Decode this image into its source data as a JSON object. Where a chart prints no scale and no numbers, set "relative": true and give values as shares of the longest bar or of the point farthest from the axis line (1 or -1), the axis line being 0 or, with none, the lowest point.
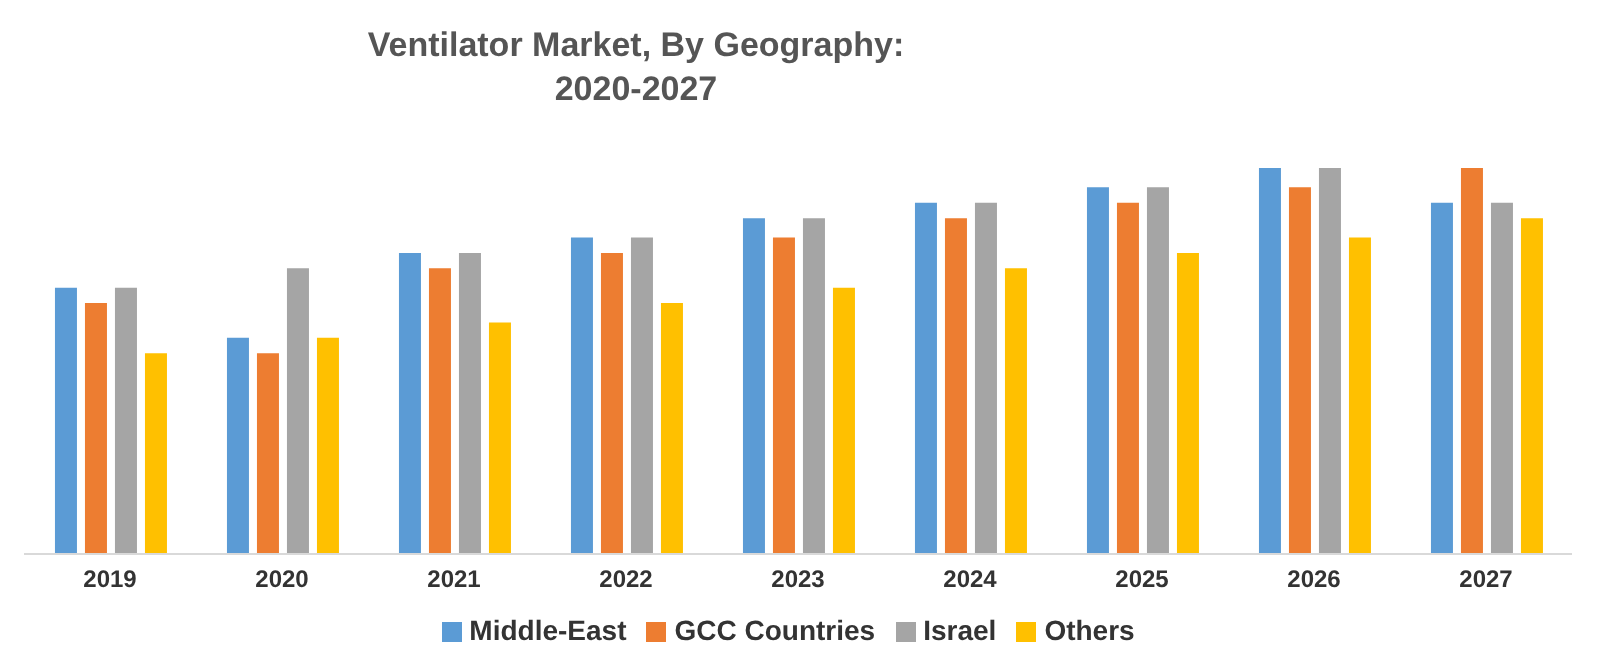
{
  "chart_data": {
    "type": "bar",
    "title": "Ventilator Market, By Geography:\n2020-2027",
    "relative": true,
    "legend": "bottom",
    "grid": false,
    "categories": [
      "2019",
      "2020",
      "2021",
      "2022",
      "2023",
      "2024",
      "2025",
      "2026",
      "2027"
    ],
    "series": [
      {
        "name": "Middle-East",
        "color": "#5b9bd5",
        "values": [
          0.69,
          0.56,
          0.78,
          0.82,
          0.87,
          0.91,
          0.95,
          1,
          0.91
        ]
      },
      {
        "name": "GCC Countries",
        "color": "#ed7d31",
        "values": [
          0.65,
          0.52,
          0.74,
          0.78,
          0.82,
          0.87,
          0.91,
          0.95,
          1
        ]
      },
      {
        "name": "Israel",
        "color": "#a5a5a5",
        "values": [
          0.69,
          0.74,
          0.78,
          0.82,
          0.87,
          0.91,
          0.95,
          1,
          0.91
        ]
      },
      {
        "name": "Others",
        "color": "#ffc000",
        "values": [
          0.52,
          0.56,
          0.6,
          0.65,
          0.69,
          0.74,
          0.78,
          0.82,
          0.87
        ]
      }
    ]
  }
}
